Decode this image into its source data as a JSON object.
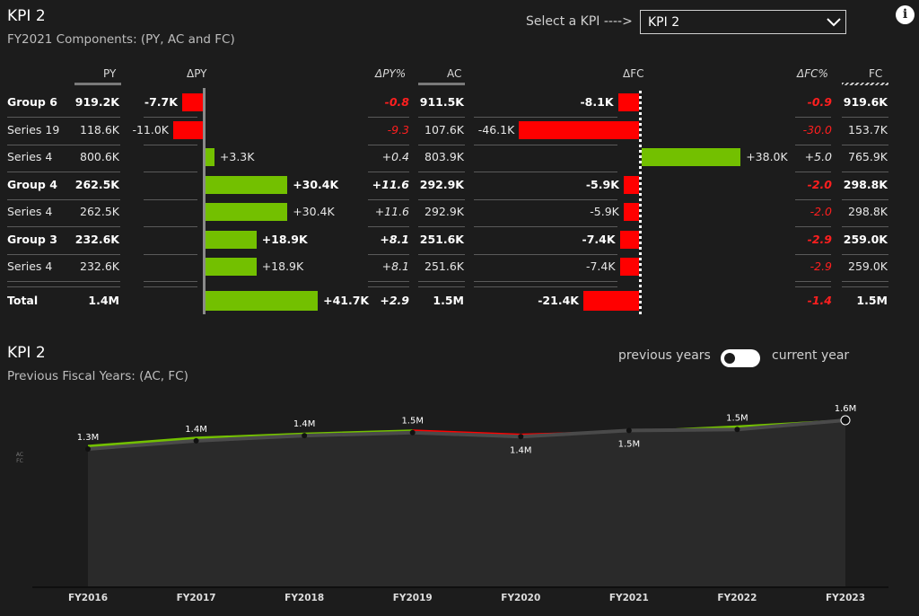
{
  "top": {
    "title": "KPI 2",
    "subtitle": "FY2021 Components: (PY, AC and FC)",
    "select_label": "Select a KPI ---->",
    "select_value": "KPI 2",
    "info_icon": "i"
  },
  "table": {
    "headers": {
      "py": "PY",
      "dpy": "ΔPY",
      "dpy_pct": "ΔPY%",
      "ac": "AC",
      "dfc": "ΔFC",
      "dfc_pct": "ΔFC%",
      "fc": "FC"
    },
    "rows": [
      {
        "name": "Group 6",
        "bold": true,
        "py": "919.2K",
        "dpy": -7.7,
        "dpy_label": "-7.7K",
        "dpy_pct": "-0.8",
        "ac": "911.5K",
        "dfc": -8.1,
        "dfc_label": "-8.1K",
        "dfc_pct": "-0.9",
        "fc": "919.6K"
      },
      {
        "name": "Series 19",
        "bold": false,
        "py": "118.6K",
        "dpy": -11.0,
        "dpy_label": "-11.0K",
        "dpy_pct": "-9.3",
        "ac": "107.6K",
        "dfc": -46.1,
        "dfc_label": "-46.1K",
        "dfc_pct": "-30.0",
        "fc": "153.7K"
      },
      {
        "name": "Series 4",
        "bold": false,
        "py": "800.6K",
        "dpy": 3.3,
        "dpy_label": "+3.3K",
        "dpy_pct": "+0.4",
        "ac": "803.9K",
        "dfc": 38.0,
        "dfc_label": "+38.0K",
        "dfc_pct": "+5.0",
        "fc": "765.9K"
      },
      {
        "name": "Group 4",
        "bold": true,
        "py": "262.5K",
        "dpy": 30.4,
        "dpy_label": "+30.4K",
        "dpy_pct": "+11.6",
        "ac": "292.9K",
        "dfc": -5.9,
        "dfc_label": "-5.9K",
        "dfc_pct": "-2.0",
        "fc": "298.8K"
      },
      {
        "name": "Series 4",
        "bold": false,
        "py": "262.5K",
        "dpy": 30.4,
        "dpy_label": "+30.4K",
        "dpy_pct": "+11.6",
        "ac": "292.9K",
        "dfc": -5.9,
        "dfc_label": "-5.9K",
        "dfc_pct": "-2.0",
        "fc": "298.8K"
      },
      {
        "name": "Group 3",
        "bold": true,
        "py": "232.6K",
        "dpy": 18.9,
        "dpy_label": "+18.9K",
        "dpy_pct": "+8.1",
        "ac": "251.6K",
        "dfc": -7.4,
        "dfc_label": "-7.4K",
        "dfc_pct": "-2.9",
        "fc": "259.0K"
      },
      {
        "name": "Series 4",
        "bold": false,
        "py": "232.6K",
        "dpy": 18.9,
        "dpy_label": "+18.9K",
        "dpy_pct": "+8.1",
        "ac": "251.6K",
        "dfc": -7.4,
        "dfc_label": "-7.4K",
        "dfc_pct": "-2.9",
        "fc": "259.0K"
      }
    ],
    "total": {
      "name": "Total",
      "py": "1.4M",
      "dpy": 41.7,
      "dpy_label": "+41.7K",
      "dpy_pct": "+2.9",
      "ac": "1.5M",
      "dfc": -21.4,
      "dfc_label": "-21.4K",
      "dfc_pct": "-1.4",
      "fc": "1.5M"
    }
  },
  "bottom": {
    "title": "KPI 2",
    "subtitle": "Previous Fiscal Years: (AC, FC)",
    "toggle_left": "previous years",
    "toggle_right": "current year",
    "side_labels": [
      "AC",
      "FC"
    ]
  },
  "colors": {
    "positive": "#73c000",
    "negative": "#ff0000",
    "ac_line": "#4a4a4a",
    "area": "#2a2a2a"
  },
  "chart_data": [
    {
      "type": "bar",
      "title": "ΔPY",
      "categories": [
        "Group 6",
        "Series 19",
        "Series 4",
        "Group 4",
        "Series 4",
        "Group 3",
        "Series 4",
        "Total"
      ],
      "values": [
        -7.7,
        -11.0,
        3.3,
        30.4,
        30.4,
        18.9,
        18.9,
        41.7
      ],
      "unit": "K"
    },
    {
      "type": "bar",
      "title": "ΔFC",
      "categories": [
        "Group 6",
        "Series 19",
        "Series 4",
        "Group 4",
        "Series 4",
        "Group 3",
        "Series 4",
        "Total"
      ],
      "values": [
        -8.1,
        -46.1,
        38.0,
        -5.9,
        -5.9,
        -7.4,
        -7.4,
        -21.4
      ],
      "unit": "K"
    },
    {
      "type": "area",
      "title": "KPI 2",
      "categories": [
        "FY2016",
        "FY2017",
        "FY2018",
        "FY2019",
        "FY2020",
        "FY2021",
        "FY2022",
        "FY2023"
      ],
      "series": [
        {
          "name": "AC",
          "values": [
            1.29,
            1.37,
            1.42,
            1.45,
            1.41,
            1.47,
            1.48,
            1.57
          ],
          "labels": [
            "1.3M",
            "1.4M",
            "1.4M",
            "1.5M",
            "1.4M",
            "1.5M",
            "1.5M",
            "1.6M"
          ]
        },
        {
          "name": "FC",
          "values": [
            1.33,
            1.41,
            1.45,
            1.48,
            1.44,
            1.47,
            1.52,
            1.58
          ]
        }
      ],
      "ylim": [
        0,
        1.7
      ]
    }
  ]
}
